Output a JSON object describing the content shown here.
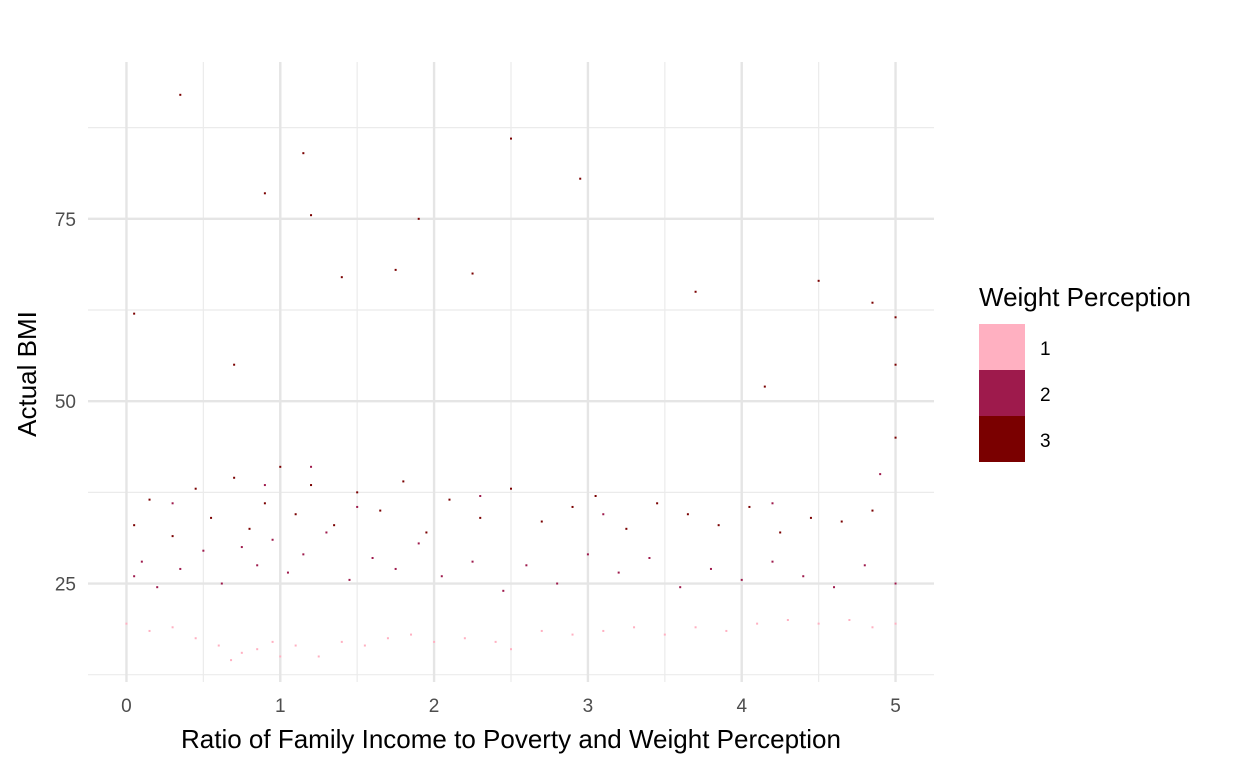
{
  "chart_data": {
    "type": "scatter",
    "title": "",
    "xlabel": "Ratio of Family Income to Poverty and Weight Perception",
    "ylabel": "Actual BMI",
    "xlim": [
      -0.25,
      5.25
    ],
    "ylim": [
      11.5,
      96.5
    ],
    "x_ticks": [
      0,
      1,
      2,
      3,
      4,
      5
    ],
    "x_tick_labels": [
      "0",
      "1",
      "2",
      "3",
      "4",
      "5"
    ],
    "y_ticks": [
      25,
      50,
      75
    ],
    "y_tick_labels": [
      "25",
      "50",
      "75"
    ],
    "grid": true,
    "legend": {
      "title": "Weight Perception",
      "placement": "right",
      "entries": [
        {
          "label": "1",
          "color": "#ffb0c1"
        },
        {
          "label": "2",
          "color": "#9e1a4c"
        },
        {
          "label": "3",
          "color": "#7a0000"
        }
      ]
    },
    "series": [
      {
        "name": "1",
        "color": "#ffb0c1",
        "x": [
          0.0,
          0.15,
          0.3,
          0.45,
          0.6,
          0.68,
          0.75,
          0.85,
          0.95,
          1.0,
          1.1,
          1.25,
          1.4,
          1.55,
          1.7,
          1.85,
          2.0,
          2.2,
          2.4,
          2.5,
          2.7,
          2.9,
          3.1,
          3.3,
          3.5,
          3.7,
          3.9,
          4.1,
          4.3,
          4.5,
          4.7,
          4.85,
          5.0
        ],
        "y": [
          19.5,
          18.5,
          19.0,
          17.5,
          16.5,
          14.5,
          15.5,
          16.0,
          17.0,
          15.0,
          16.5,
          15.0,
          17.0,
          16.5,
          17.5,
          18.0,
          17.0,
          17.5,
          17.0,
          16.0,
          18.5,
          18.0,
          18.5,
          19.0,
          18.0,
          19.0,
          18.5,
          19.5,
          20.0,
          19.5,
          20.0,
          19.0,
          19.5
        ]
      },
      {
        "name": "2",
        "color": "#9e1a4c",
        "x": [
          0.05,
          0.1,
          0.2,
          0.35,
          0.5,
          0.62,
          0.75,
          0.85,
          0.95,
          1.05,
          1.15,
          1.3,
          1.45,
          1.6,
          1.75,
          1.9,
          2.05,
          2.25,
          2.45,
          2.6,
          2.8,
          3.0,
          3.2,
          3.4,
          3.6,
          3.8,
          4.0,
          4.2,
          4.4,
          4.6,
          4.8,
          5.0,
          0.3,
          0.9,
          1.2,
          1.5,
          2.3,
          3.1,
          4.2,
          4.9
        ],
        "y": [
          26.0,
          28.0,
          24.5,
          27.0,
          29.5,
          25.0,
          30.0,
          27.5,
          31.0,
          26.5,
          29.0,
          32.0,
          25.5,
          28.5,
          27.0,
          30.5,
          26.0,
          28.0,
          24.0,
          27.5,
          25.0,
          29.0,
          26.5,
          28.5,
          24.5,
          27.0,
          25.5,
          28.0,
          26.0,
          24.5,
          27.5,
          25.0,
          36.0,
          38.5,
          41.0,
          35.5,
          37.0,
          34.5,
          36.0,
          40.0
        ]
      },
      {
        "name": "3",
        "color": "#7a0000",
        "x": [
          0.05,
          0.15,
          0.3,
          0.45,
          0.55,
          0.7,
          0.8,
          0.9,
          1.0,
          1.1,
          1.2,
          1.35,
          1.5,
          1.65,
          1.8,
          1.95,
          2.1,
          2.3,
          2.5,
          2.7,
          2.9,
          3.05,
          3.25,
          3.45,
          3.65,
          3.85,
          4.05,
          4.25,
          4.45,
          4.65,
          4.85,
          5.0,
          5.0,
          5.0,
          0.35,
          0.9,
          1.15,
          1.9,
          2.5,
          2.95,
          3.7,
          4.85,
          1.2,
          0.05,
          1.4,
          1.75,
          4.5,
          4.15,
          2.25,
          0.7
        ],
        "y": [
          33.0,
          36.5,
          31.5,
          38.0,
          34.0,
          39.5,
          32.5,
          36.0,
          41.0,
          34.5,
          38.5,
          33.0,
          37.5,
          35.0,
          39.0,
          32.0,
          36.5,
          34.0,
          38.0,
          33.5,
          35.5,
          37.0,
          32.5,
          36.0,
          34.5,
          33.0,
          35.5,
          32.0,
          34.0,
          33.5,
          35.0,
          45.0,
          55.0,
          61.5,
          92.0,
          78.5,
          84.0,
          75.0,
          86.0,
          80.5,
          65.0,
          63.5,
          75.5,
          62.0,
          67.0,
          68.0,
          66.5,
          52.0,
          67.5,
          55.0
        ]
      }
    ]
  }
}
